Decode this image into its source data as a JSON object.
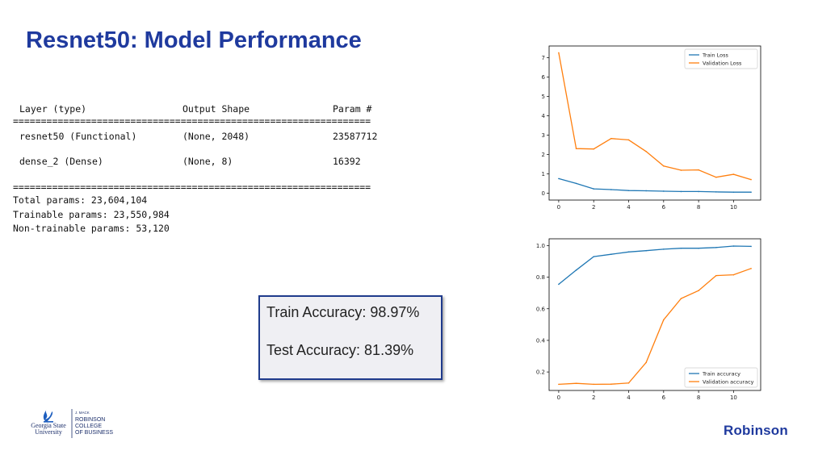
{
  "slide": {
    "title": "Resnet50: Model Performance"
  },
  "model_summary": {
    "rule_top": "________________________________________________________________",
    "header": {
      "layer": "Layer (type)",
      "shape": "Output Shape",
      "params": "Param #"
    },
    "rule_double": "================================================================",
    "rows": [
      {
        "layer": "resnet50 (Functional)",
        "shape": "(None, 2048)",
        "params": "23587712"
      },
      {
        "layer": "dense_2 (Dense)",
        "shape": "(None, 8)",
        "params": "16392"
      }
    ],
    "total": "Total params: 23,604,104",
    "trainable": "Trainable params: 23,550,984",
    "non_trainable": "Non-trainable params: 53,120",
    "rule_bottom": "________________________________________________________________"
  },
  "accuracy_box": {
    "train": "Train Accuracy: 98.97%",
    "test": "Test Accuracy: 81.39%"
  },
  "logos": {
    "gsu_lines": [
      "Georgia State",
      "University"
    ],
    "college_lines": [
      "J. MACK",
      "ROBINSON",
      "COLLEGE",
      "OF BUSINESS"
    ],
    "robinson": "Robinson"
  },
  "colors": {
    "title": "#1f3a9e",
    "train": "#1f77b4",
    "validation": "#ff7f0e"
  },
  "chart_data": [
    {
      "type": "line",
      "x": [
        0,
        1,
        2,
        3,
        4,
        5,
        6,
        7,
        8,
        9,
        10,
        11
      ],
      "series": [
        {
          "name": "Train Loss",
          "color": "#1f77b4",
          "values": [
            0.75,
            0.5,
            0.22,
            0.18,
            0.13,
            0.12,
            0.1,
            0.08,
            0.08,
            0.06,
            0.05,
            0.05
          ]
        },
        {
          "name": "Validation Loss",
          "color": "#ff7f0e",
          "values": [
            7.25,
            2.3,
            2.28,
            2.82,
            2.75,
            2.15,
            1.4,
            1.18,
            1.2,
            0.82,
            0.97,
            0.7
          ]
        }
      ],
      "xticks": [
        0,
        2,
        4,
        6,
        8,
        10
      ],
      "yticks": [
        0,
        1,
        2,
        3,
        4,
        5,
        6,
        7
      ],
      "xlim": [
        -0.55,
        11.55
      ],
      "ylim": [
        -0.36,
        7.6
      ],
      "legend": "top-right",
      "grid": false,
      "title": "",
      "xlabel": "",
      "ylabel": ""
    },
    {
      "type": "line",
      "x": [
        0,
        1,
        2,
        3,
        4,
        5,
        6,
        7,
        8,
        9,
        10,
        11
      ],
      "series": [
        {
          "name": "Train accuracy",
          "color": "#1f77b4",
          "values": [
            0.755,
            0.845,
            0.93,
            0.945,
            0.96,
            0.968,
            0.977,
            0.983,
            0.983,
            0.988,
            0.997,
            0.995
          ]
        },
        {
          "name": "Validation accuracy",
          "color": "#ff7f0e",
          "values": [
            0.122,
            0.128,
            0.122,
            0.123,
            0.13,
            0.26,
            0.53,
            0.665,
            0.715,
            0.81,
            0.815,
            0.855
          ]
        }
      ],
      "xticks": [
        0,
        2,
        4,
        6,
        8,
        10
      ],
      "yticks": [
        0.2,
        0.4,
        0.6,
        0.8,
        1.0
      ],
      "ytick_labels": [
        "0.2",
        "0.4",
        "0.6",
        "0.8",
        "1.0"
      ],
      "xlim": [
        -0.55,
        11.55
      ],
      "ylim": [
        0.083,
        1.043
      ],
      "legend": "bottom-right",
      "grid": false,
      "title": "",
      "xlabel": "",
      "ylabel": ""
    }
  ]
}
